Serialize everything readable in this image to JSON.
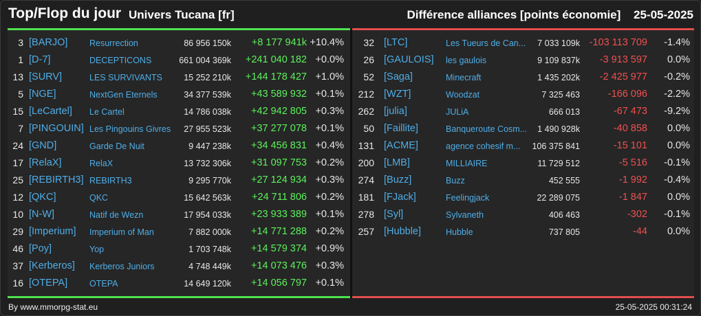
{
  "header": {
    "title": "Top/Flop du jour",
    "subtitle": "Univers Tucana [fr]",
    "category": "Différence alliances [points économie]",
    "date": "25-05-2025"
  },
  "colors": {
    "top_accent": "#4ee34e",
    "flop_accent": "#e34e4e",
    "tag_blue": "#4faee8",
    "gain_green": "#5cf25c",
    "loss_red": "#f05050"
  },
  "top": [
    {
      "rank": "3",
      "tag": "[BARJO]",
      "name": "Resurrection",
      "points": "86 956 150k",
      "diff": "+8 177 941k",
      "pct": "+10.4%"
    },
    {
      "rank": "1",
      "tag": "[D-7]",
      "name": "DECEPTICONS",
      "points": "661 004 369k",
      "diff": "+241 040 182",
      "pct": "+0.0%"
    },
    {
      "rank": "13",
      "tag": "[SURV]",
      "name": "LES SURVIVANTS",
      "points": "15 252 210k",
      "diff": "+144 178 427",
      "pct": "+1.0%"
    },
    {
      "rank": "5",
      "tag": "[NGE]",
      "name": "NextGen Eternels",
      "points": "34 377 539k",
      "diff": "+43 589 932",
      "pct": "+0.1%"
    },
    {
      "rank": "15",
      "tag": "[LeCartel]",
      "name": "Le Cartel",
      "points": "14 786 038k",
      "diff": "+42 942 805",
      "pct": "+0.3%"
    },
    {
      "rank": "7",
      "tag": "[PINGOUIN]",
      "name": "Les Pingouins Givres",
      "points": "27 955 523k",
      "diff": "+37 277 078",
      "pct": "+0.1%"
    },
    {
      "rank": "24",
      "tag": "[GND]",
      "name": "Garde De Nuit",
      "points": "9 447 238k",
      "diff": "+34 456 831",
      "pct": "+0.4%"
    },
    {
      "rank": "17",
      "tag": "[RelaX]",
      "name": "RelaX",
      "points": "13 732 306k",
      "diff": "+31 097 753",
      "pct": "+0.2%"
    },
    {
      "rank": "25",
      "tag": "[REBIRTH3]",
      "name": "REBIRTH3",
      "points": "9 295 770k",
      "diff": "+27 124 934",
      "pct": "+0.3%"
    },
    {
      "rank": "12",
      "tag": "[QKC]",
      "name": "QKC",
      "points": "15 642 563k",
      "diff": "+24 711 806",
      "pct": "+0.2%"
    },
    {
      "rank": "10",
      "tag": "[N-W]",
      "name": "Natif de Wezn",
      "points": "17 954 033k",
      "diff": "+23 933 389",
      "pct": "+0.1%"
    },
    {
      "rank": "29",
      "tag": "[Imperium]",
      "name": "Imperium of Man",
      "points": "7 882 000k",
      "diff": "+14 771 288",
      "pct": "+0.2%"
    },
    {
      "rank": "46",
      "tag": "[Poy]",
      "name": "Yop",
      "points": "1 703 748k",
      "diff": "+14 579 374",
      "pct": "+0.9%"
    },
    {
      "rank": "37",
      "tag": "[Kerberos]",
      "name": "Kerberos Juniors",
      "points": "4 748 449k",
      "diff": "+14 073 476",
      "pct": "+0.3%"
    },
    {
      "rank": "16",
      "tag": "[OTEPA]",
      "name": "OTEPA",
      "points": "14 649 120k",
      "diff": "+14 056 797",
      "pct": "+0.1%"
    }
  ],
  "flop": [
    {
      "rank": "32",
      "tag": "[LTC]",
      "name": "Les Tueurs de Can...",
      "points": "7 033 109k",
      "diff": "-103 113 709",
      "pct": "-1.4%"
    },
    {
      "rank": "26",
      "tag": "[GAULOIS]",
      "name": "les gaulois",
      "points": "9 109 837k",
      "diff": "-3 913 597",
      "pct": "0.0%"
    },
    {
      "rank": "52",
      "tag": "[Saga]",
      "name": "Minecraft",
      "points": "1 435 202k",
      "diff": "-2 425 977",
      "pct": "-0.2%"
    },
    {
      "rank": "212",
      "tag": "[WZT]",
      "name": "Woodzat",
      "points": "7 325 463",
      "diff": "-166 096",
      "pct": "-2.2%"
    },
    {
      "rank": "262",
      "tag": "[julia]",
      "name": "JULiA",
      "points": "666 013",
      "diff": "-67 473",
      "pct": "-9.2%"
    },
    {
      "rank": "50",
      "tag": "[Faillite]",
      "name": "Banqueroute Cosm...",
      "points": "1 490 928k",
      "diff": "-40 858",
      "pct": "0.0%"
    },
    {
      "rank": "131",
      "tag": "[ACME]",
      "name": "agence cohesif m...",
      "points": "106 375 841",
      "diff": "-15 101",
      "pct": "0.0%"
    },
    {
      "rank": "200",
      "tag": "[LMB]",
      "name": "MILLIAIRE",
      "points": "11 729 512",
      "diff": "-5 516",
      "pct": "-0.1%"
    },
    {
      "rank": "274",
      "tag": "[Buzz]",
      "name": "Buzz",
      "points": "452 555",
      "diff": "-1 992",
      "pct": "-0.4%"
    },
    {
      "rank": "181",
      "tag": "[FJack]",
      "name": "Feelingjack",
      "points": "22 289 075",
      "diff": "-1 847",
      "pct": "0.0%"
    },
    {
      "rank": "278",
      "tag": "[Syl]",
      "name": "Sylvaneth",
      "points": "406 463",
      "diff": "-302",
      "pct": "-0.1%"
    },
    {
      "rank": "257",
      "tag": "[Hubble]",
      "name": "Hubble",
      "points": "737 805",
      "diff": "-44",
      "pct": "0.0%"
    }
  ],
  "footer": {
    "credit": "By www.mmorpg-stat.eu",
    "timestamp": "25-05-2025 00:31:24"
  }
}
